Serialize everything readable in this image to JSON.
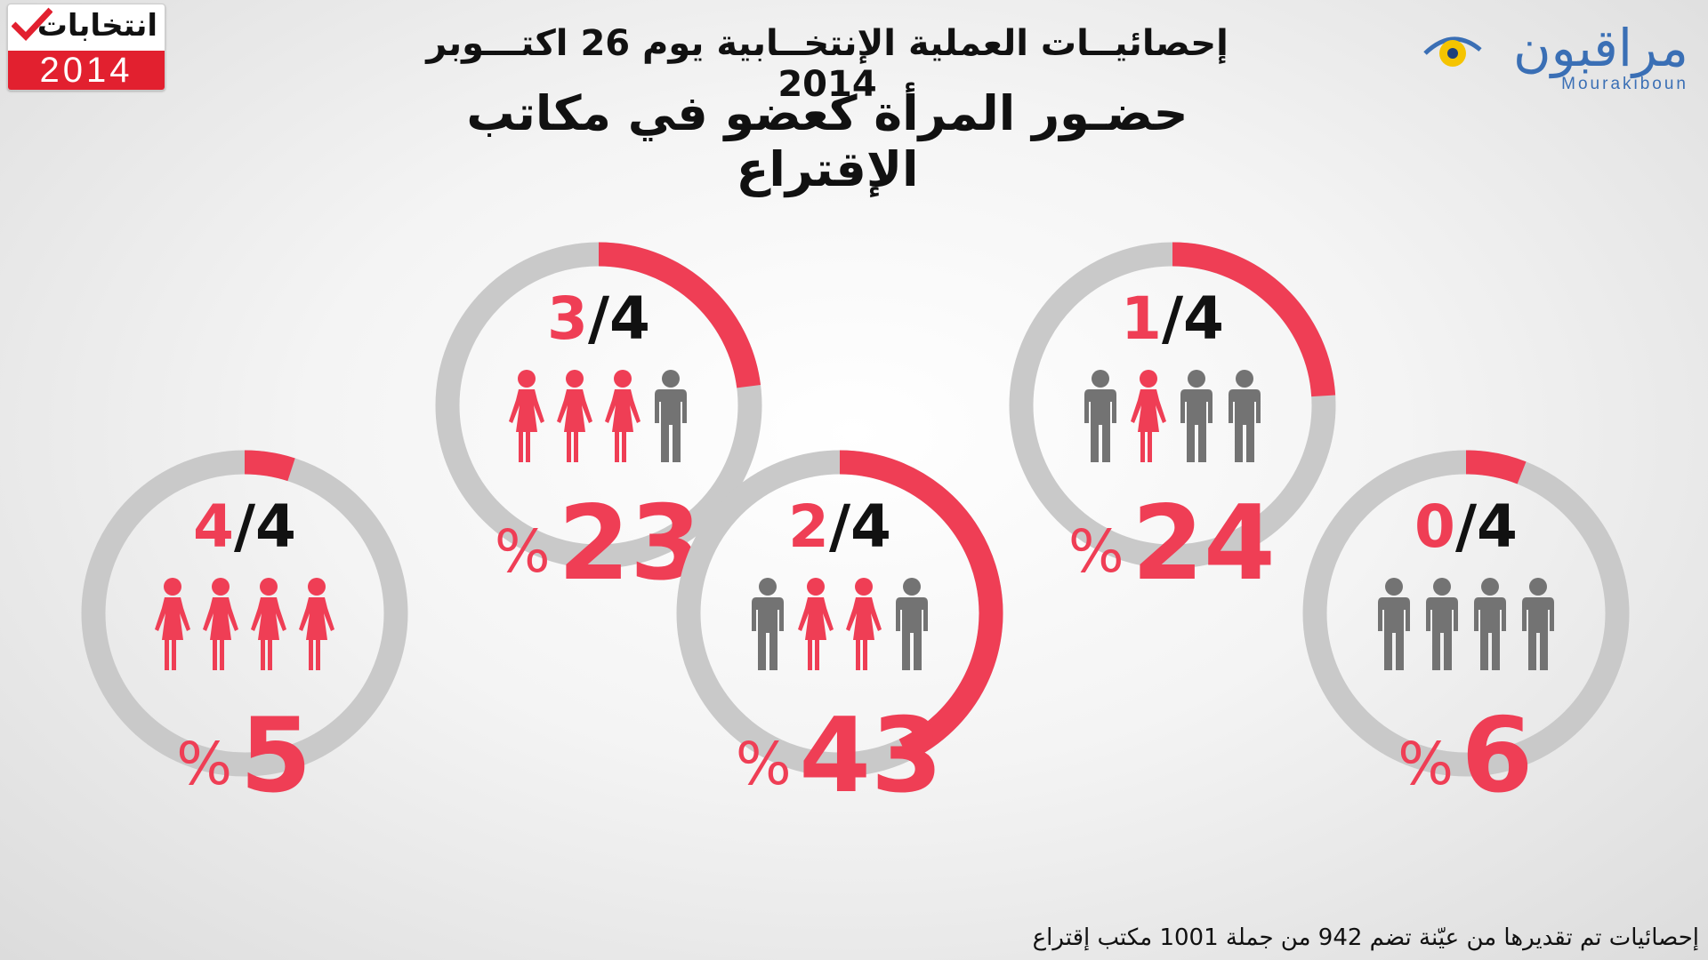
{
  "logos": {
    "left_top": "انتخابات",
    "left_year": "2014",
    "right_brand": "مراقبون",
    "right_latin": "Mourakiboun"
  },
  "header": {
    "subtitle": "إحصائيــات العملية الإنتخــابية يوم 26 اكتـــوبر 2014",
    "title": "حضـور المرأة كعضو في مكاتب الإقتراع"
  },
  "footer": "إحصائيات تم تقديرها من عيّنة تضم 942 من جملة 1001 مكتب إقتراع",
  "colors": {
    "accent": "#ef3e55",
    "track": "#c9c9c9",
    "male": "#737373",
    "text": "#111111"
  },
  "chart_data": {
    "type": "pie",
    "percent_symbol": "%",
    "categories": [
      {
        "women": 4,
        "total": 4,
        "percent": 5
      },
      {
        "women": 3,
        "total": 4,
        "percent": 23
      },
      {
        "women": 2,
        "total": 4,
        "percent": 43
      },
      {
        "women": 1,
        "total": 4,
        "percent": 24
      },
      {
        "women": 0,
        "total": 4,
        "percent": 6
      }
    ]
  }
}
